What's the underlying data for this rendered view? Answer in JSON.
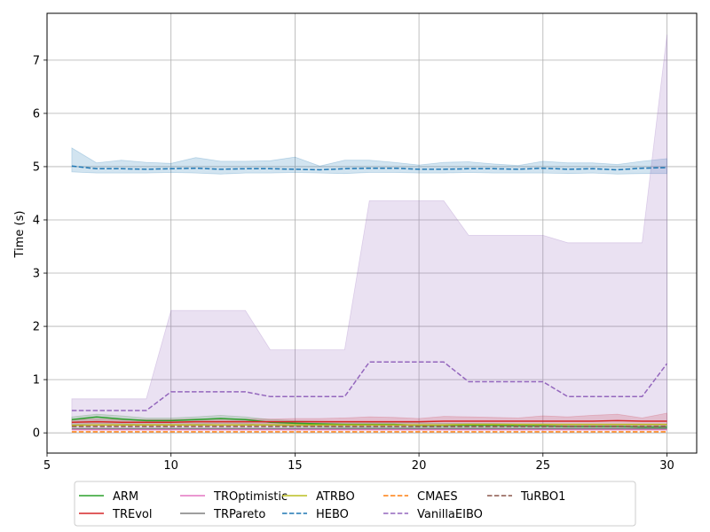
{
  "chart_data": {
    "type": "line",
    "title": "",
    "xlabel": "",
    "ylabel": "Time (s)",
    "xlim": [
      5.0,
      31.2
    ],
    "ylim": [
      -0.38,
      7.88
    ],
    "xticks": [
      5,
      10,
      15,
      20,
      25,
      30
    ],
    "yticks": [
      0,
      1,
      2,
      3,
      4,
      5,
      6,
      7
    ],
    "grid": true,
    "legend_position": "bottom",
    "legend_columns": 5,
    "x": [
      6,
      7,
      8,
      9,
      10,
      11,
      12,
      13,
      14,
      15,
      16,
      17,
      18,
      19,
      20,
      21,
      22,
      23,
      24,
      25,
      26,
      27,
      28,
      29,
      30
    ],
    "series": [
      {
        "name": "ARM",
        "color": "#2ca02c",
        "dash": "solid",
        "values": [
          0.25,
          0.3,
          0.26,
          0.23,
          0.23,
          0.25,
          0.27,
          0.25,
          0.2,
          0.18,
          0.17,
          0.16,
          0.16,
          0.16,
          0.14,
          0.14,
          0.14,
          0.14,
          0.13,
          0.13,
          0.12,
          0.12,
          0.12,
          0.11,
          0.11
        ],
        "band_low": [
          0.15,
          0.18,
          0.17,
          0.15,
          0.15,
          0.16,
          0.18,
          0.17,
          0.14,
          0.12,
          0.11,
          0.1,
          0.1,
          0.1,
          0.09,
          0.09,
          0.09,
          0.09,
          0.08,
          0.08,
          0.08,
          0.08,
          0.07,
          0.07,
          0.07
        ],
        "band_high": [
          0.3,
          0.35,
          0.32,
          0.28,
          0.28,
          0.3,
          0.33,
          0.3,
          0.25,
          0.23,
          0.22,
          0.21,
          0.2,
          0.2,
          0.19,
          0.18,
          0.18,
          0.18,
          0.17,
          0.17,
          0.16,
          0.16,
          0.16,
          0.15,
          0.15
        ]
      },
      {
        "name": "TREvol",
        "color": "#d62728",
        "dash": "solid",
        "values": [
          0.2,
          0.21,
          0.2,
          0.2,
          0.2,
          0.21,
          0.21,
          0.21,
          0.21,
          0.21,
          0.21,
          0.21,
          0.21,
          0.21,
          0.21,
          0.22,
          0.22,
          0.22,
          0.22,
          0.22,
          0.22,
          0.22,
          0.23,
          0.22,
          0.22
        ],
        "band_low": [
          0.14,
          0.14,
          0.14,
          0.14,
          0.14,
          0.14,
          0.14,
          0.14,
          0.14,
          0.14,
          0.14,
          0.14,
          0.14,
          0.14,
          0.14,
          0.14,
          0.14,
          0.14,
          0.14,
          0.14,
          0.14,
          0.14,
          0.14,
          0.14,
          0.14
        ],
        "band_high": [
          0.25,
          0.26,
          0.25,
          0.25,
          0.25,
          0.26,
          0.26,
          0.26,
          0.26,
          0.27,
          0.27,
          0.28,
          0.3,
          0.29,
          0.27,
          0.31,
          0.3,
          0.29,
          0.28,
          0.32,
          0.3,
          0.33,
          0.35,
          0.28,
          0.37
        ]
      },
      {
        "name": "TROptimistic",
        "color": "#e377c2",
        "dash": "solid",
        "values": [
          0.06,
          0.06,
          0.06,
          0.06,
          0.06,
          0.06,
          0.06,
          0.06,
          0.06,
          0.06,
          0.06,
          0.06,
          0.06,
          0.06,
          0.06,
          0.06,
          0.06,
          0.06,
          0.06,
          0.06,
          0.06,
          0.06,
          0.06,
          0.06,
          0.06
        ]
      },
      {
        "name": "TRPareto",
        "color": "#7f7f7f",
        "dash": "solid",
        "values": [
          0.08,
          0.08,
          0.08,
          0.08,
          0.08,
          0.08,
          0.08,
          0.08,
          0.08,
          0.08,
          0.08,
          0.08,
          0.08,
          0.08,
          0.08,
          0.08,
          0.08,
          0.08,
          0.08,
          0.08,
          0.08,
          0.08,
          0.08,
          0.08,
          0.08
        ]
      },
      {
        "name": "ATRBO",
        "color": "#bcbd22",
        "dash": "solid",
        "values": [
          0.14,
          0.15,
          0.15,
          0.15,
          0.15,
          0.15,
          0.15,
          0.15,
          0.15,
          0.15,
          0.15,
          0.15,
          0.15,
          0.15,
          0.15,
          0.15,
          0.16,
          0.16,
          0.16,
          0.16,
          0.16,
          0.16,
          0.16,
          0.16,
          0.16
        ]
      },
      {
        "name": "HEBO",
        "color": "#1f77b4",
        "dash": "dashed",
        "values": [
          5.01,
          4.96,
          4.96,
          4.95,
          4.96,
          4.97,
          4.95,
          4.96,
          4.96,
          4.95,
          4.94,
          4.96,
          4.97,
          4.97,
          4.95,
          4.95,
          4.96,
          4.96,
          4.95,
          4.97,
          4.95,
          4.96,
          4.94,
          4.97,
          4.98
        ],
        "band_low": [
          4.9,
          4.88,
          4.88,
          4.88,
          4.89,
          4.88,
          4.86,
          4.88,
          4.88,
          4.89,
          4.88,
          4.87,
          4.89,
          4.89,
          4.88,
          4.88,
          4.89,
          4.88,
          4.88,
          4.88,
          4.87,
          4.88,
          4.86,
          4.87,
          4.87
        ],
        "band_high": [
          5.35,
          5.07,
          5.12,
          5.08,
          5.06,
          5.17,
          5.1,
          5.1,
          5.11,
          5.18,
          5.01,
          5.12,
          5.12,
          5.08,
          5.03,
          5.08,
          5.09,
          5.05,
          5.02,
          5.1,
          5.07,
          5.07,
          5.04,
          5.1,
          5.15
        ]
      },
      {
        "name": "CMAES",
        "color": "#ff7f0e",
        "dash": "dashed",
        "values": [
          0.02,
          0.02,
          0.02,
          0.02,
          0.02,
          0.02,
          0.02,
          0.02,
          0.02,
          0.02,
          0.02,
          0.02,
          0.02,
          0.02,
          0.02,
          0.02,
          0.02,
          0.02,
          0.02,
          0.02,
          0.02,
          0.02,
          0.02,
          0.02,
          0.02
        ]
      },
      {
        "name": "VanillaEIBO",
        "color": "#9467bd",
        "dash": "dashed",
        "values": [
          0.42,
          0.42,
          0.42,
          0.42,
          0.77,
          0.77,
          0.77,
          0.77,
          0.68,
          0.68,
          0.68,
          0.68,
          1.33,
          1.33,
          1.33,
          1.33,
          0.96,
          0.96,
          0.96,
          0.96,
          0.68,
          0.68,
          0.68,
          0.68,
          1.3
        ],
        "band_low": [
          0.06,
          0.06,
          0.06,
          0.06,
          0.06,
          0.06,
          0.06,
          0.06,
          0.06,
          0.06,
          0.06,
          0.06,
          0.06,
          0.06,
          0.06,
          0.06,
          0.06,
          0.06,
          0.06,
          0.06,
          0.06,
          0.06,
          0.06,
          0.06,
          0.06
        ],
        "band_high": [
          0.64,
          0.64,
          0.64,
          0.64,
          2.3,
          2.3,
          2.3,
          2.3,
          1.56,
          1.56,
          1.56,
          1.56,
          4.36,
          4.36,
          4.36,
          4.36,
          3.71,
          3.71,
          3.71,
          3.71,
          3.57,
          3.57,
          3.57,
          3.57,
          7.48
        ]
      },
      {
        "name": "TuRBO1",
        "color": "#8c564b",
        "dash": "dashed",
        "values": [
          0.12,
          0.12,
          0.12,
          0.12,
          0.12,
          0.12,
          0.12,
          0.12,
          0.12,
          0.12,
          0.12,
          0.12,
          0.12,
          0.12,
          0.12,
          0.12,
          0.12,
          0.12,
          0.12,
          0.12,
          0.12,
          0.12,
          0.12,
          0.12,
          0.12
        ]
      }
    ]
  }
}
